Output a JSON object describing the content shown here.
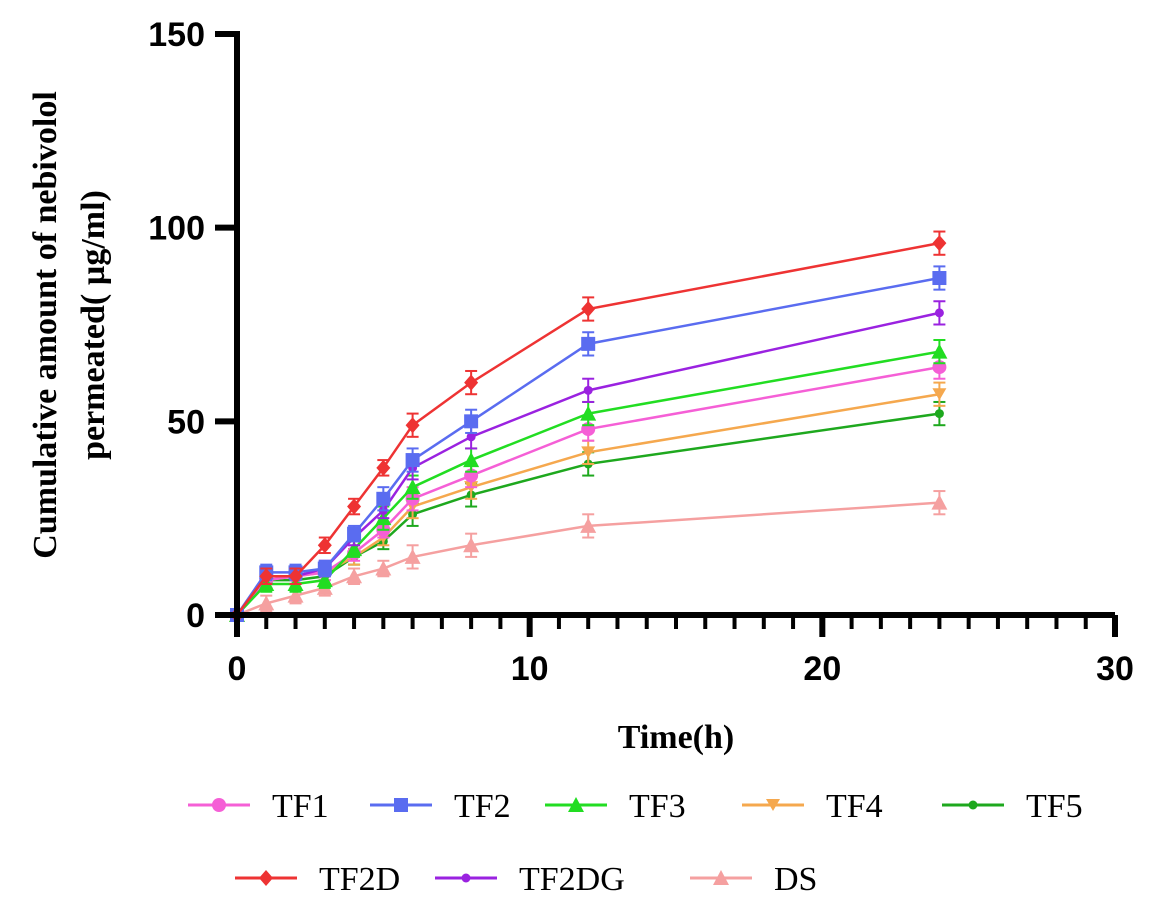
{
  "chart_data": {
    "type": "line",
    "title": "",
    "xlabel": "Time(h)",
    "ylabel_line1": "Cumulative amount of nebivolol",
    "ylabel_line2": "permeated( µg/ml)",
    "xlim": [
      0,
      30
    ],
    "ylim": [
      0,
      150
    ],
    "x_ticks": [
      0,
      10,
      20,
      30
    ],
    "y_ticks": [
      0,
      50,
      100,
      150
    ],
    "grid": false,
    "legend_position": "bottom",
    "x": [
      0,
      1,
      2,
      3,
      4,
      5,
      6,
      8,
      12,
      24
    ],
    "series": [
      {
        "name": "TF1",
        "color": "#f55fd6",
        "marker": "circle",
        "values": [
          0,
          9,
          10,
          11,
          16,
          22,
          30,
          36,
          48,
          64
        ],
        "errors": [
          0,
          2,
          2,
          2,
          2,
          2,
          3,
          3,
          3,
          3
        ]
      },
      {
        "name": "TF2",
        "color": "#5a6cf0",
        "marker": "square",
        "values": [
          0,
          11,
          11,
          12,
          21,
          30,
          40,
          50,
          70,
          87
        ],
        "errors": [
          0,
          2,
          2,
          2,
          2,
          3,
          3,
          3,
          3,
          3
        ]
      },
      {
        "name": "TF3",
        "color": "#22dd22",
        "marker": "triangle-up",
        "values": [
          0,
          8,
          8,
          9,
          17,
          25,
          33,
          40,
          52,
          68
        ],
        "errors": [
          0,
          2,
          2,
          2,
          2,
          3,
          3,
          3,
          3,
          3
        ]
      },
      {
        "name": "TF4",
        "color": "#f5a84e",
        "marker": "triangle-down",
        "values": [
          0,
          9,
          10,
          11,
          15,
          20,
          28,
          33,
          42,
          57
        ],
        "errors": [
          0,
          2,
          2,
          2,
          2,
          2,
          3,
          3,
          3,
          3
        ]
      },
      {
        "name": "TF5",
        "color": "#1ea81e",
        "marker": "dot",
        "values": [
          0,
          9,
          9,
          10,
          15,
          19,
          26,
          31,
          39,
          52
        ],
        "errors": [
          0,
          2,
          2,
          2,
          2,
          2,
          3,
          3,
          3,
          3
        ]
      },
      {
        "name": "TF2D",
        "color": "#ee3333",
        "marker": "diamond",
        "values": [
          0,
          10,
          10,
          18,
          28,
          38,
          49,
          60,
          79,
          96
        ],
        "errors": [
          0,
          2,
          2,
          2,
          2,
          2,
          3,
          3,
          3,
          3
        ]
      },
      {
        "name": "TF2DG",
        "color": "#9a22e0",
        "marker": "dot",
        "values": [
          0,
          10,
          10,
          12,
          20,
          27,
          38,
          46,
          58,
          78
        ],
        "errors": [
          0,
          2,
          2,
          2,
          2,
          2,
          3,
          3,
          3,
          3
        ]
      },
      {
        "name": "DS",
        "color": "#f5a0a0",
        "marker": "triangle-up",
        "values": [
          0,
          3,
          5,
          7,
          10,
          12,
          15,
          18,
          23,
          29
        ],
        "errors": [
          0,
          2,
          2,
          2,
          2,
          2,
          3,
          3,
          3,
          3
        ]
      }
    ]
  }
}
